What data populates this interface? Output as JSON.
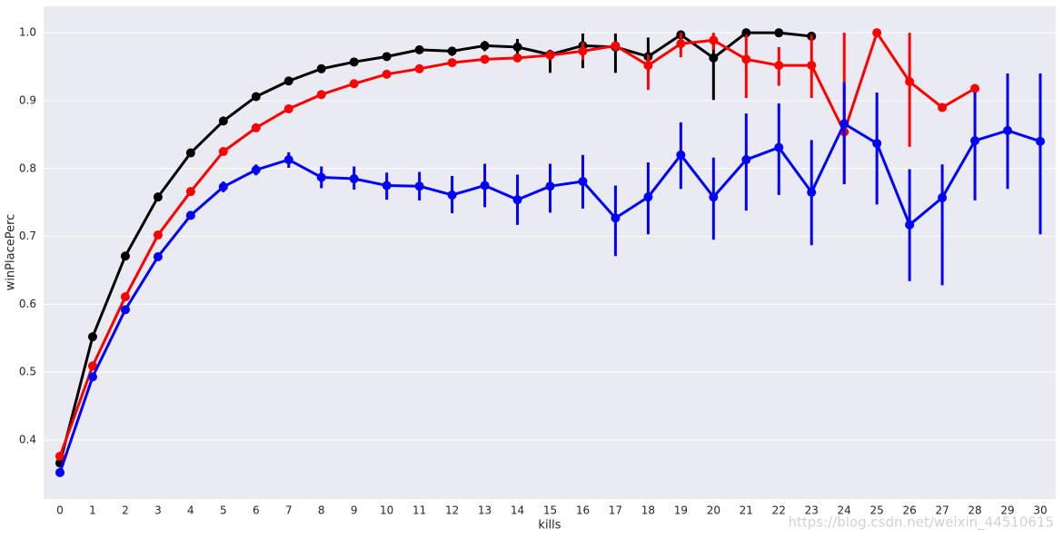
{
  "chart_data": {
    "type": "pointplot",
    "x_label": "kills",
    "y_label": "winPlacePerc",
    "categories": [
      "0",
      "1",
      "2",
      "3",
      "4",
      "5",
      "6",
      "7",
      "8",
      "9",
      "10",
      "11",
      "12",
      "13",
      "14",
      "15",
      "16",
      "17",
      "18",
      "19",
      "20",
      "21",
      "22",
      "23",
      "24",
      "25",
      "26",
      "27",
      "28",
      "29",
      "30"
    ],
    "ylim": [
      0.313,
      1.039
    ],
    "yticks": [
      0.4,
      0.5,
      0.6,
      0.7,
      0.8,
      0.9,
      {
        "value": 1,
        "label": "1.0"
      }
    ],
    "grid": true,
    "series": [
      {
        "color": "#000000",
        "values": [
          0.366,
          0.552,
          0.671,
          0.758,
          0.823,
          0.87,
          0.906,
          0.929,
          0.947,
          0.957,
          0.965,
          0.975,
          0.973,
          0.981,
          0.979,
          0.968,
          0.981,
          0.979,
          0.965,
          0.997,
          0.963,
          1.0,
          1.0,
          0.995,
          null,
          null,
          null,
          null,
          null,
          null,
          null
        ],
        "lower": [
          0.363,
          0.549,
          0.668,
          0.755,
          0.82,
          0.867,
          0.903,
          0.926,
          0.944,
          0.954,
          0.962,
          0.972,
          0.966,
          0.973,
          0.968,
          0.941,
          0.948,
          0.941,
          0.94,
          0.987,
          0.901,
          0.999,
          0.999,
          0.991,
          null,
          null,
          null,
          null,
          null,
          null,
          null
        ],
        "upper": [
          0.369,
          0.555,
          0.674,
          0.761,
          0.826,
          0.873,
          0.909,
          0.932,
          0.95,
          0.96,
          0.968,
          0.978,
          0.979,
          0.988,
          0.991,
          0.975,
          0.999,
          0.999,
          0.993,
          1.0,
          0.995,
          1.001,
          1.001,
          0.999,
          null,
          null,
          null,
          null,
          null,
          null,
          null
        ]
      },
      {
        "color": "#ff0000",
        "values": [
          0.376,
          0.509,
          0.611,
          0.702,
          0.766,
          0.825,
          0.86,
          0.888,
          0.909,
          0.925,
          0.939,
          0.947,
          0.956,
          0.961,
          0.963,
          0.967,
          0.973,
          0.981,
          0.952,
          0.984,
          0.989,
          0.961,
          0.952,
          0.952,
          0.854,
          1.0,
          0.928,
          0.89,
          0.918,
          null,
          null
        ],
        "lower": [
          0.372,
          0.505,
          0.607,
          0.698,
          0.762,
          0.821,
          0.856,
          0.884,
          0.905,
          0.921,
          0.935,
          0.943,
          0.952,
          0.956,
          0.957,
          0.96,
          0.96,
          0.973,
          0.916,
          0.964,
          0.975,
          0.904,
          0.922,
          0.904,
          0.777,
          1.0,
          0.832,
          0.885,
          0.916,
          null,
          null
        ],
        "upper": [
          0.38,
          0.513,
          0.615,
          0.706,
          0.77,
          0.829,
          0.864,
          0.892,
          0.913,
          0.929,
          0.943,
          0.951,
          0.96,
          0.966,
          0.969,
          0.974,
          0.986,
          0.987,
          0.968,
          1.0,
          1.0,
          0.997,
          0.979,
          0.997,
          1.0,
          1.0,
          1.0,
          0.896,
          0.921,
          null,
          null
        ]
      },
      {
        "color": "#0000ff",
        "values": [
          0.352,
          0.493,
          0.592,
          0.67,
          0.731,
          0.773,
          0.798,
          0.813,
          0.787,
          0.785,
          0.775,
          0.774,
          0.761,
          0.775,
          0.754,
          0.774,
          0.781,
          0.727,
          0.758,
          0.82,
          0.758,
          0.813,
          0.831,
          0.765,
          0.866,
          0.837,
          0.717,
          0.757,
          0.841,
          0.856,
          0.84
        ],
        "lower": [
          0.348,
          0.489,
          0.588,
          0.666,
          0.727,
          0.765,
          0.79,
          0.801,
          0.771,
          0.769,
          0.754,
          0.753,
          0.734,
          0.743,
          0.717,
          0.735,
          0.741,
          0.671,
          0.703,
          0.77,
          0.695,
          0.738,
          0.761,
          0.687,
          0.777,
          0.747,
          0.634,
          0.628,
          0.753,
          0.77,
          0.703
        ],
        "upper": [
          0.356,
          0.497,
          0.596,
          0.674,
          0.735,
          0.781,
          0.806,
          0.824,
          0.803,
          0.803,
          0.794,
          0.795,
          0.789,
          0.807,
          0.791,
          0.807,
          0.82,
          0.775,
          0.809,
          0.868,
          0.816,
          0.881,
          0.896,
          0.842,
          0.927,
          0.912,
          0.799,
          0.806,
          0.912,
          0.94,
          0.94
        ]
      }
    ],
    "watermark": "https://blog.csdn.net/weixin_44510615"
  }
}
